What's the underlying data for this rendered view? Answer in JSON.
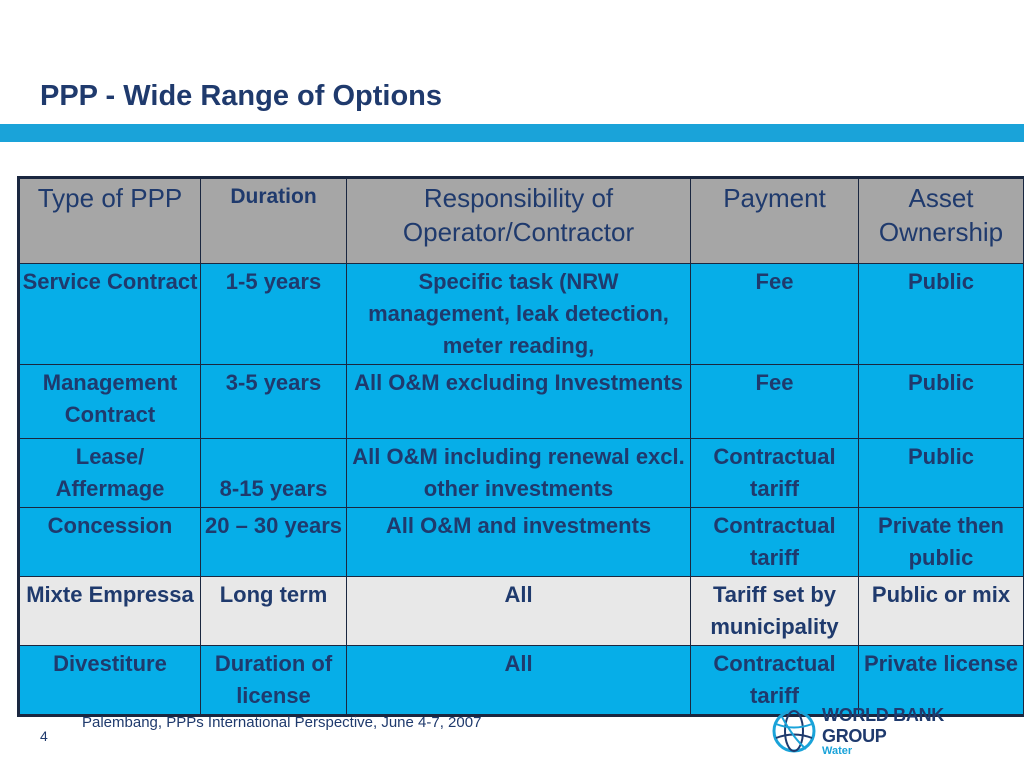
{
  "title": "PPP - Wide Range of Options",
  "colors": {
    "header_bg": "#a6a6a6",
    "row_blue": "#06aee8",
    "row_grey": "#e8e8e8",
    "text": "#1f3a6d",
    "rule": "#1aa3d9"
  },
  "table": {
    "headers": [
      "Type of PPP",
      "Duration",
      "Responsibility of Operator/Contractor",
      "Payment",
      "Asset Ownership"
    ],
    "rows": [
      {
        "type": "Service Contract",
        "duration": "1-5 years",
        "responsibility": "Specific task (NRW management,  leak detection, meter reading,",
        "payment": "Fee",
        "ownership": "Public"
      },
      {
        "type": "Management Contract",
        "duration": "3-5 years",
        "responsibility": "All O&M excluding Investments",
        "payment": "Fee",
        "ownership": "Public"
      },
      {
        "type": "Lease/ Affermage",
        "duration": "8-15 years",
        "responsibility": "All O&M including renewal excl. other investments",
        "payment": "Contractual tariff",
        "ownership": "Public"
      },
      {
        "type": "Concession",
        "duration": "20 – 30 years",
        "responsibility": "All O&M and investments",
        "payment": "Contractual tariff",
        "ownership": "Private then public"
      },
      {
        "type": "Mixte Empressa",
        "duration": "Long term",
        "responsibility": "All",
        "payment": "Tariff set by municipality",
        "ownership": "Public or mix"
      },
      {
        "type": "Divestiture",
        "duration": "Duration of license",
        "responsibility": "All",
        "payment": "Contractual tariff",
        "ownership": "Private license"
      }
    ]
  },
  "footer": {
    "text": "Palembang, PPPs International Perspective, June 4-7, 2007",
    "page": "4"
  },
  "logo": {
    "name": "WORLD BANK GROUP",
    "sub": "Water",
    "icon": "globe-icon"
  }
}
